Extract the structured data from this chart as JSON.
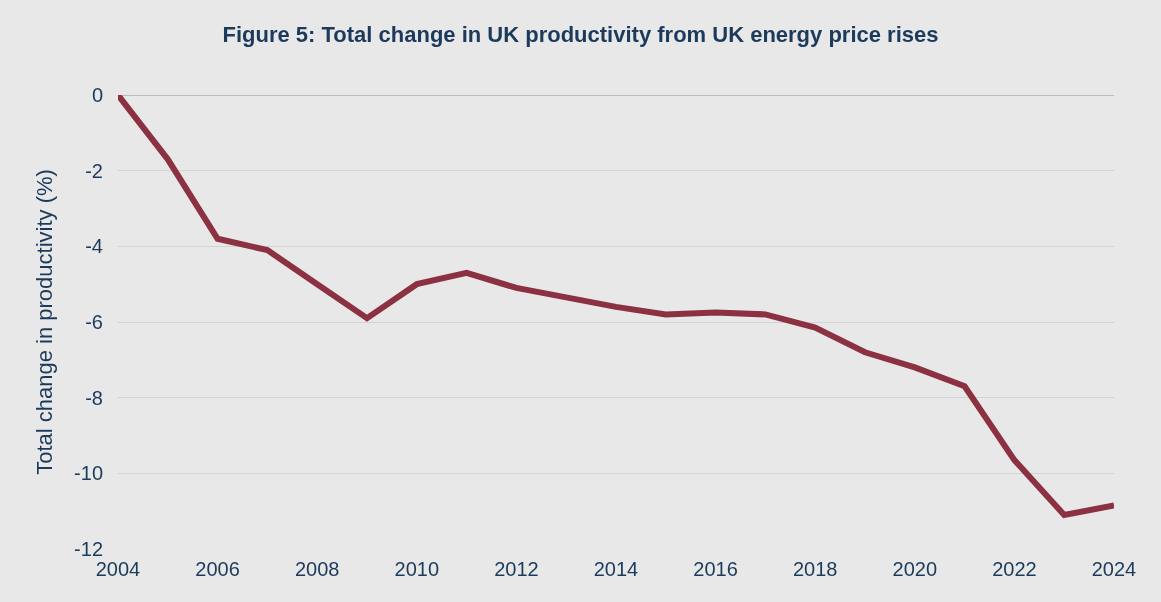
{
  "chart_data": {
    "type": "line",
    "title": "Figure 5: Total change in UK productivity from UK energy price rises",
    "ylabel": "Total change in productivity (%)",
    "x": [
      2004,
      2005,
      2006,
      2007,
      2008,
      2009,
      2010,
      2011,
      2012,
      2013,
      2014,
      2015,
      2016,
      2017,
      2018,
      2019,
      2020,
      2021,
      2022,
      2023,
      2024
    ],
    "series": [
      {
        "color": "#8b3142",
        "values": [
          0,
          -1.7,
          -3.8,
          -4.1,
          -5.0,
          -5.9,
          -5.0,
          -4.7,
          -5.1,
          -5.35,
          -5.6,
          -5.8,
          -5.75,
          -5.8,
          -6.15,
          -6.8,
          -7.2,
          -7.7,
          -9.65,
          -11.1,
          -10.85
        ]
      }
    ],
    "xlim": [
      2004,
      2024
    ],
    "xticks": [
      2004,
      2006,
      2008,
      2010,
      2012,
      2014,
      2016,
      2018,
      2020,
      2022,
      2024
    ],
    "ylim": [
      -12,
      0
    ],
    "yticks": [
      -12,
      -10,
      -8,
      -6,
      -4,
      -2,
      0
    ],
    "grid": "y",
    "marker": "none",
    "line_style": "solid"
  }
}
